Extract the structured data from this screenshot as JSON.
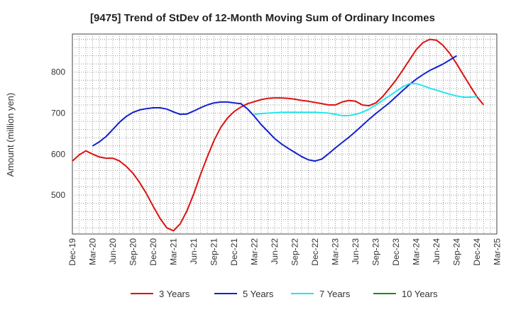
{
  "chart_data": {
    "type": "line",
    "title": "[9475]  Trend of StDev of 12-Month Moving Sum of Ordinary Incomes",
    "xlabel": "",
    "ylabel": "Amount (million yen)",
    "x_ticks": [
      "Dec-19",
      "Mar-20",
      "Jun-20",
      "Sep-20",
      "Dec-20",
      "Mar-21",
      "Jun-21",
      "Sep-21",
      "Dec-21",
      "Mar-22",
      "Jun-22",
      "Sep-22",
      "Dec-22",
      "Mar-23",
      "Jun-23",
      "Sep-23",
      "Dec-23",
      "Mar-24",
      "Jun-24",
      "Sep-24",
      "Dec-24",
      "Mar-25"
    ],
    "y_ticks": [
      500,
      600,
      700,
      800
    ],
    "ylim": [
      405,
      893
    ],
    "grid": true,
    "legend_position": "bottom",
    "series": [
      {
        "name": "3 Years",
        "color": "#dd1111",
        "start_month_index": 0,
        "values": [
          583,
          598,
          608,
          600,
          593,
          590,
          590,
          583,
          570,
          553,
          530,
          503,
          472,
          443,
          420,
          413,
          430,
          462,
          503,
          550,
          593,
          633,
          665,
          688,
          704,
          715,
          723,
          728,
          733,
          736,
          737,
          737,
          736,
          734,
          731,
          729,
          726,
          723,
          720,
          720,
          727,
          731,
          729,
          720,
          718,
          725,
          740,
          760,
          781,
          805,
          830,
          855,
          872,
          880,
          878,
          865,
          845,
          820,
          793,
          766,
          740,
          720
        ]
      },
      {
        "name": "5 Years",
        "color": "#1122cc",
        "start_month_index": 3,
        "values": [
          620,
          630,
          643,
          660,
          678,
          692,
          702,
          708,
          711,
          713,
          713,
          710,
          703,
          697,
          698,
          705,
          713,
          720,
          725,
          727,
          727,
          725,
          723,
          710,
          692,
          672,
          655,
          638,
          625,
          614,
          604,
          594,
          586,
          583,
          588,
          601,
          615,
          628,
          641,
          655,
          670,
          685,
          699,
          712,
          725,
          740,
          755,
          770,
          783,
          794,
          804,
          812,
          820,
          830,
          840
        ]
      },
      {
        "name": "7 Years",
        "color": "#22e6ea",
        "start_month_index": 27,
        "values": [
          697,
          699,
          700,
          701,
          702,
          702,
          702,
          702,
          702,
          702,
          701,
          700,
          697,
          694,
          694,
          697,
          702,
          710,
          720,
          731,
          742,
          753,
          764,
          772,
          772,
          767,
          761,
          756,
          751,
          746,
          742,
          739,
          739,
          740
        ]
      },
      {
        "name": "10 Years",
        "color": "#228822",
        "start_month_index": 0,
        "values": []
      }
    ]
  }
}
